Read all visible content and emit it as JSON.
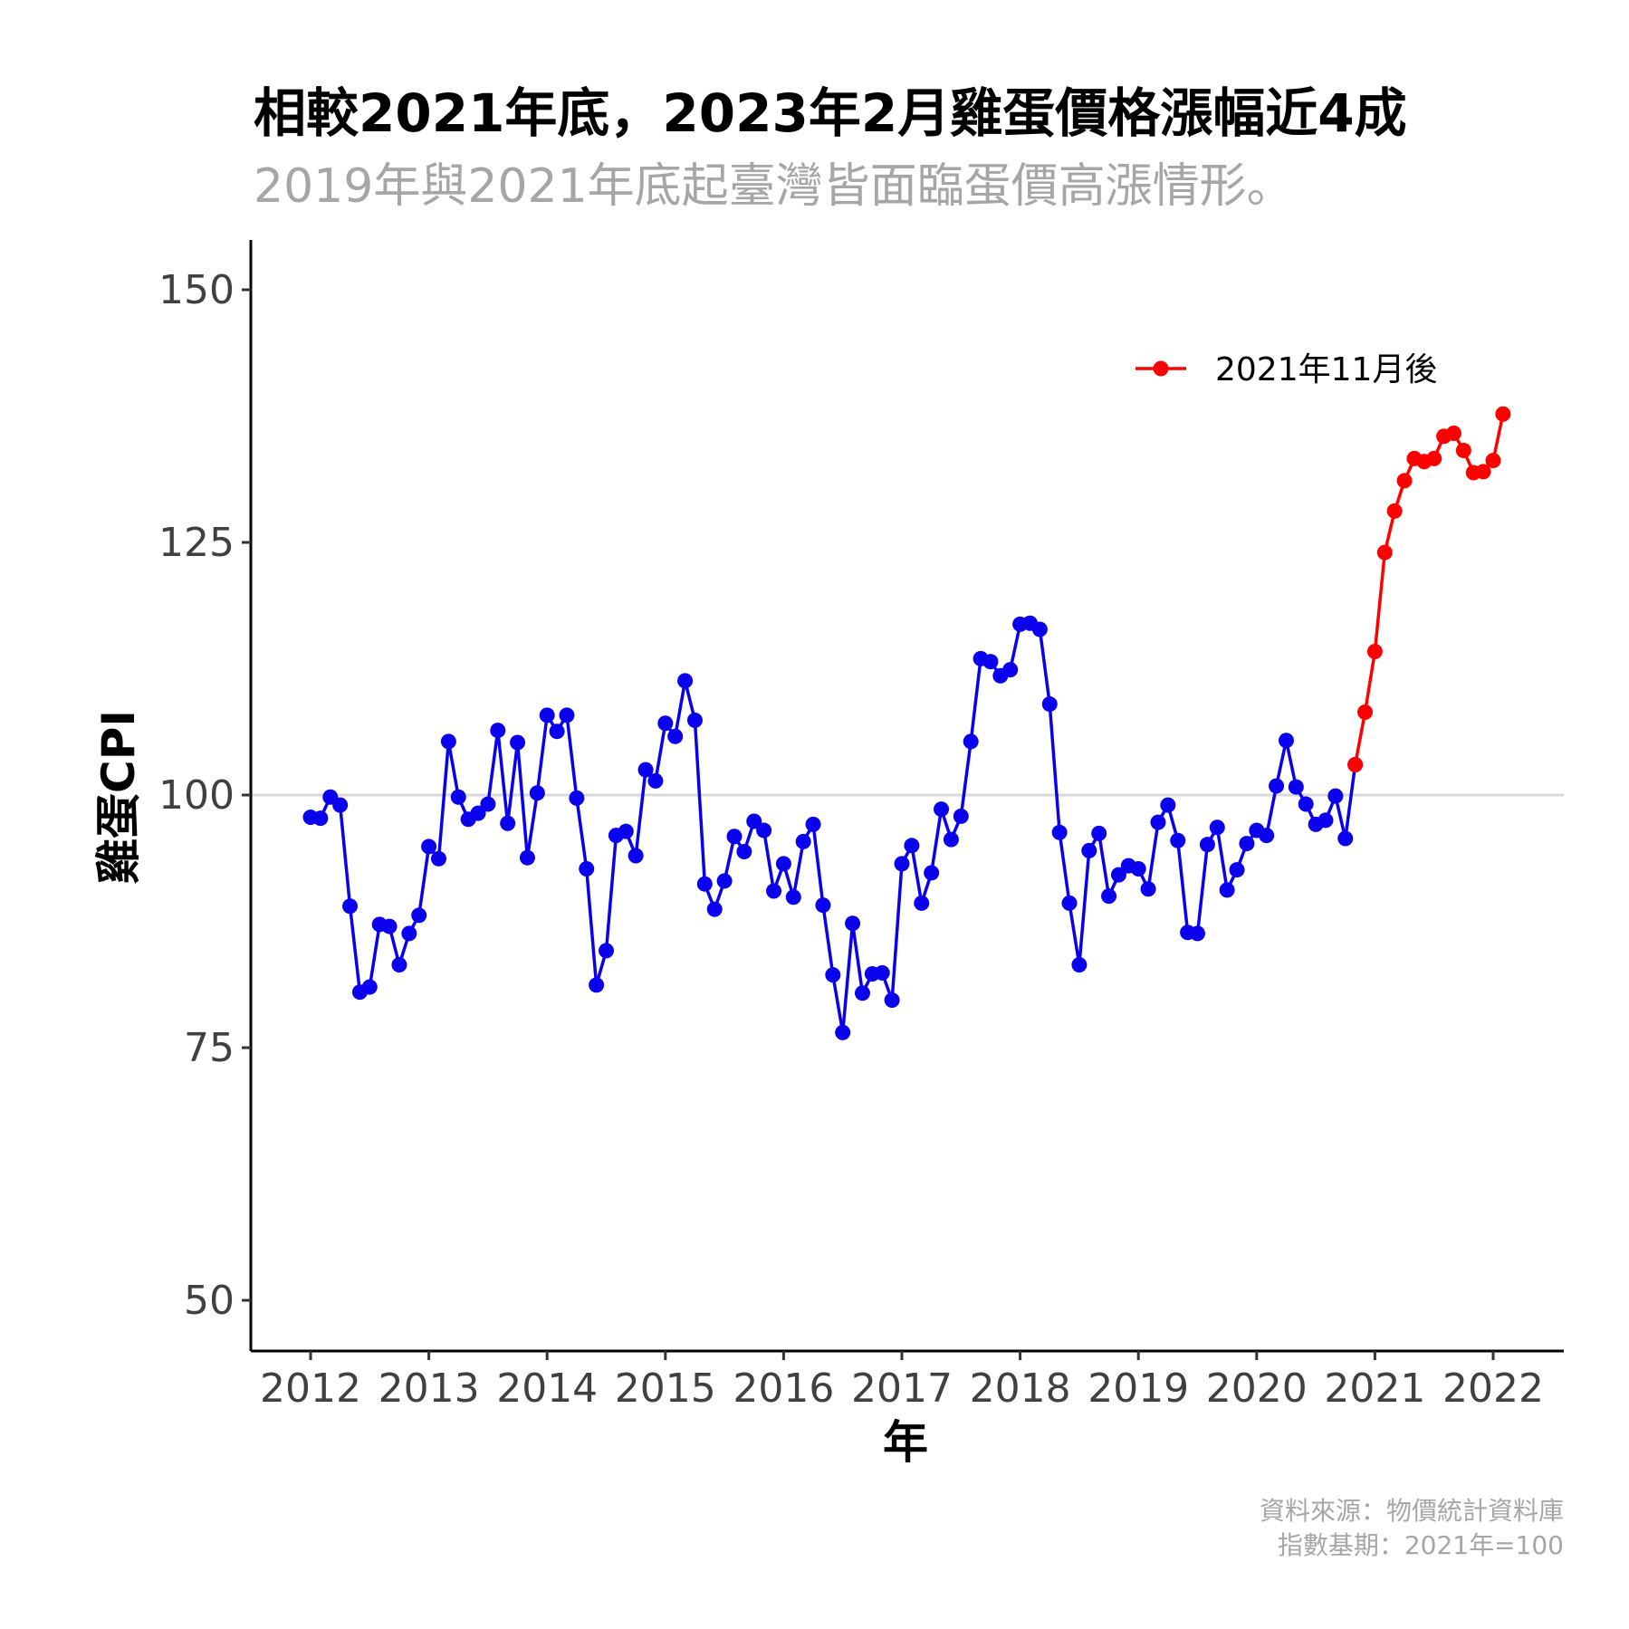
{
  "chart_data": {
    "type": "line",
    "title": "相較2021年底，2023年2月雞蛋價格漲幅近4成",
    "subtitle": "2019年與2021年底起臺灣皆面臨蛋價高漲情形。",
    "xlabel": "年",
    "ylabel": "雞蛋CPI",
    "xlim": [
      2011.5,
      2022.6
    ],
    "ylim": [
      45,
      155
    ],
    "x_ticks": [
      "2012",
      "2013",
      "2014",
      "2015",
      "2016",
      "2017",
      "2018",
      "2019",
      "2020",
      "2021",
      "2022"
    ],
    "y_ticks": [
      "50",
      "75",
      "100",
      "125",
      "150"
    ],
    "reference_line": 100,
    "grid": false,
    "legend_position": "top-right",
    "caption": [
      "資料來源：物價統計資料庫",
      "指數基期：2021年=100"
    ],
    "series": [
      {
        "color": "#0a00ee",
        "start_year": 2012,
        "months_per_point": 1,
        "values": [
          97.8,
          97.7,
          99.8,
          99.0,
          89.0,
          80.5,
          81.0,
          87.2,
          87.0,
          83.2,
          86.3,
          88.1,
          94.9,
          93.7,
          105.3,
          99.8,
          97.6,
          98.2,
          99.1,
          106.4,
          97.2,
          105.2,
          93.8,
          100.2,
          107.9,
          106.3,
          107.9,
          99.7,
          92.7,
          81.2,
          84.6,
          96.0,
          96.4,
          94.0,
          102.5,
          101.4,
          107.1,
          105.8,
          111.3,
          107.4,
          91.2,
          88.7,
          91.5,
          95.9,
          94.4,
          97.4,
          96.5,
          90.5,
          93.2,
          89.9,
          95.4,
          97.1,
          89.1,
          82.2,
          76.5,
          87.3,
          80.4,
          82.3,
          82.4,
          79.7,
          93.2,
          95.0,
          89.3,
          92.3,
          98.6,
          95.6,
          97.9,
          105.3,
          113.5,
          113.2,
          111.8,
          112.4,
          116.9,
          117.0,
          116.4,
          109.0,
          96.3,
          89.3,
          83.2,
          94.5,
          96.2,
          90.0,
          92.1,
          93.0,
          92.7,
          90.7,
          97.3,
          99.0,
          95.5,
          86.4,
          86.3,
          95.1,
          96.8,
          90.6,
          92.6,
          95.2,
          96.5,
          96.0,
          100.9,
          105.4,
          100.8,
          99.1,
          97.1,
          97.5,
          99.9,
          95.7,
          103.0
        ]
      },
      {
        "name": "2021年11月後",
        "color": "#ff0000",
        "start_year": 2020.8333,
        "months_per_point": 1,
        "values": [
          103.0,
          108.2,
          114.2,
          124.0,
          128.1,
          131.1,
          133.3,
          133.0,
          133.3,
          135.5,
          135.8,
          134.1,
          131.9,
          132.0,
          133.1,
          137.7
        ]
      }
    ]
  }
}
